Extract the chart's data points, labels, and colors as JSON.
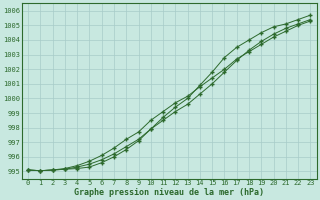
{
  "x": [
    0,
    1,
    2,
    3,
    4,
    5,
    6,
    7,
    8,
    9,
    10,
    11,
    12,
    13,
    14,
    15,
    16,
    17,
    18,
    19,
    20,
    21,
    22,
    23
  ],
  "line1": [
    995.1,
    995.05,
    995.1,
    995.15,
    995.3,
    995.5,
    995.8,
    996.2,
    996.7,
    997.2,
    997.9,
    998.5,
    999.1,
    999.6,
    1000.3,
    1001.0,
    1001.8,
    1002.6,
    1003.3,
    1003.9,
    1004.4,
    1004.8,
    1005.1,
    1005.4
  ],
  "line2": [
    995.1,
    995.05,
    995.1,
    995.2,
    995.4,
    995.7,
    996.1,
    996.6,
    997.2,
    997.7,
    998.5,
    999.1,
    999.7,
    1000.15,
    1000.8,
    1001.4,
    1002.0,
    1002.7,
    1003.2,
    1003.7,
    1004.2,
    1004.6,
    1005.0,
    1005.3
  ],
  "line3": [
    995.1,
    995.05,
    995.1,
    995.15,
    995.2,
    995.3,
    995.6,
    996.0,
    996.5,
    997.1,
    997.9,
    998.7,
    999.4,
    1000.0,
    1000.9,
    1001.8,
    1002.8,
    1003.5,
    1004.0,
    1004.5,
    1004.9,
    1005.1,
    1005.4,
    1005.7
  ],
  "line_color": "#2d6a2d",
  "bg_color": "#c8e8e0",
  "grid_color": "#a8ccc8",
  "title": "Graphe pression niveau de la mer (hPa)",
  "ylim": [
    994.5,
    1006.5
  ],
  "xlim": [
    -0.5,
    23.5
  ],
  "yticks": [
    995,
    996,
    997,
    998,
    999,
    1000,
    1001,
    1002,
    1003,
    1004,
    1005,
    1006
  ],
  "xticks": [
    0,
    1,
    2,
    3,
    4,
    5,
    6,
    7,
    8,
    9,
    10,
    11,
    12,
    13,
    14,
    15,
    16,
    17,
    18,
    19,
    20,
    21,
    22,
    23
  ],
  "tick_fontsize": 5.0,
  "label_fontsize": 6.0
}
